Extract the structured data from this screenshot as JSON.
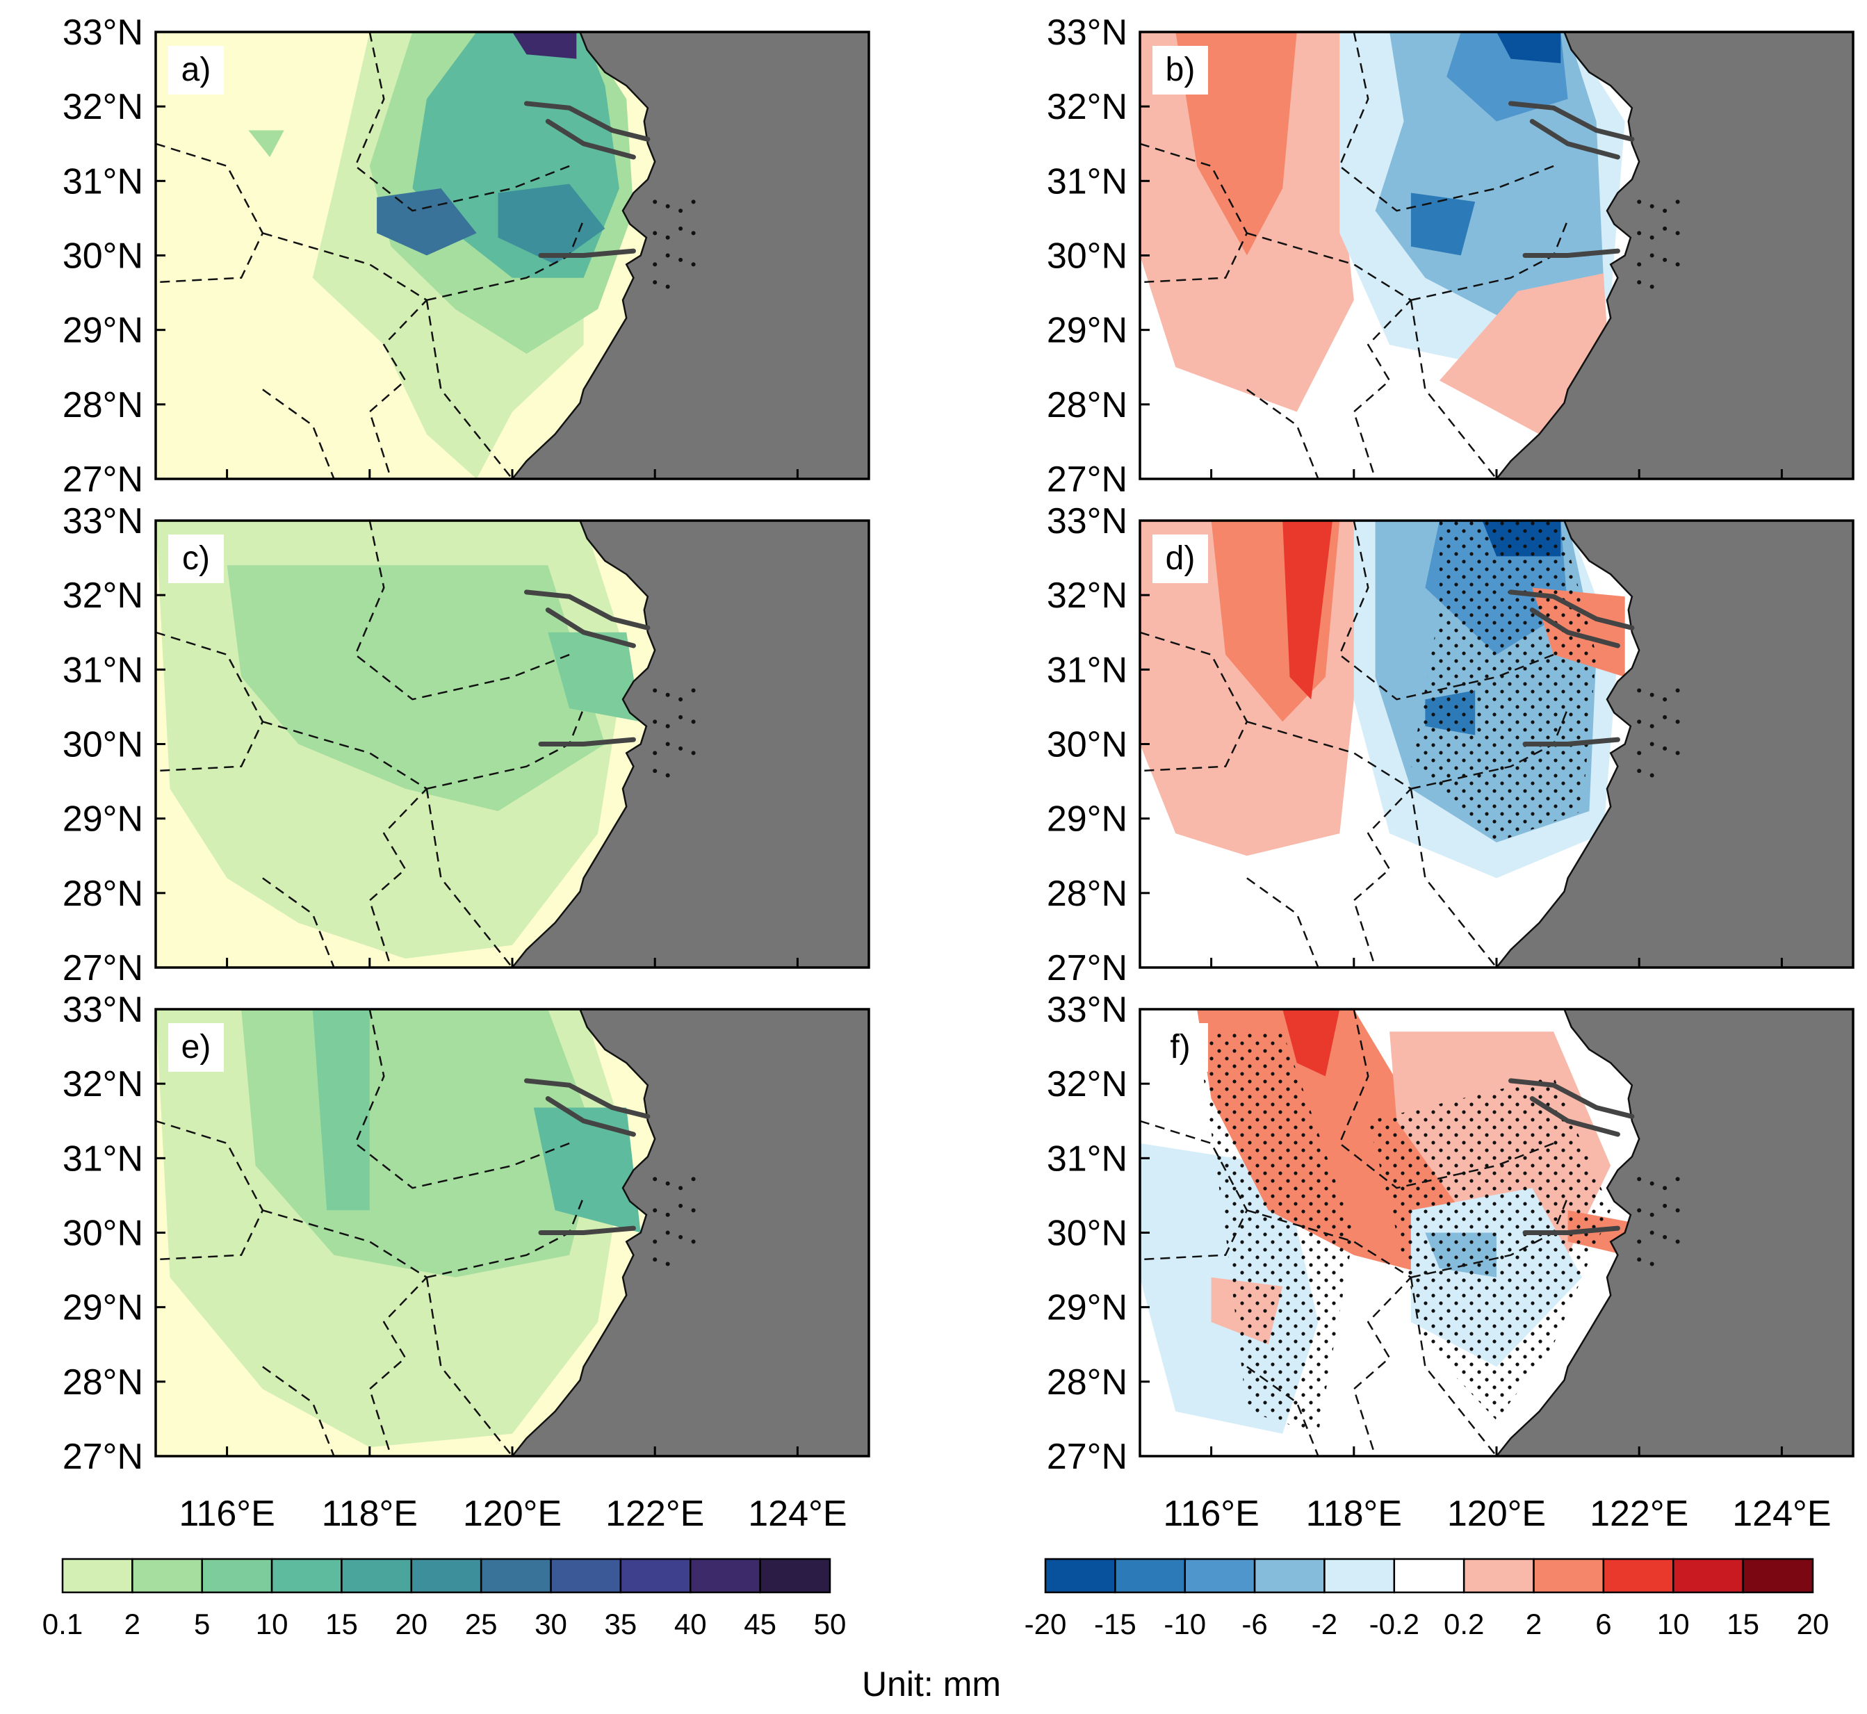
{
  "figure": {
    "unit_label": "Unit: mm",
    "background_color": "#ffffff",
    "ocean_color": "#757575"
  },
  "axes": {
    "lat_ticks": [
      "33°N",
      "32°N",
      "31°N",
      "30°N",
      "29°N",
      "28°N",
      "27°N"
    ],
    "lat_values": [
      33,
      32,
      31,
      30,
      29,
      28,
      27
    ],
    "lon_ticks": [
      "116°E",
      "118°E",
      "120°E",
      "122°E",
      "124°E"
    ],
    "lon_values": [
      116,
      118,
      120,
      122,
      124
    ],
    "lon_range": [
      115,
      125
    ],
    "lat_range": [
      27,
      33
    ]
  },
  "panels": [
    {
      "id": "a",
      "label": "a)",
      "scale": "precip",
      "stippled": false
    },
    {
      "id": "b",
      "label": "b)",
      "scale": "diff",
      "stippled": false
    },
    {
      "id": "c",
      "label": "c)",
      "scale": "precip",
      "stippled": false
    },
    {
      "id": "d",
      "label": "d)",
      "scale": "diff",
      "stippled": true
    },
    {
      "id": "e",
      "label": "e)",
      "scale": "precip",
      "stippled": false
    },
    {
      "id": "f",
      "label": "f)",
      "scale": "diff",
      "stippled": true
    }
  ],
  "colorbars": {
    "precip": {
      "labels": [
        "0.1",
        "2",
        "5",
        "10",
        "15",
        "20",
        "25",
        "30",
        "35",
        "40",
        "45",
        "50"
      ],
      "colors": [
        "#d3efb4",
        "#a6dea0",
        "#7dcc9c",
        "#5ebb9d",
        "#4aa69d",
        "#3d8f9b",
        "#3a7399",
        "#3b5897",
        "#3e3f8d",
        "#3c2a6a",
        "#2b1c46"
      ]
    },
    "diff": {
      "labels": [
        "-20",
        "-15",
        "-10",
        "-6",
        "-2",
        "-0.2",
        "0.2",
        "2",
        "6",
        "10",
        "15",
        "20"
      ],
      "colors": [
        "#08519c",
        "#2c7bb8",
        "#4f96cd",
        "#86bcdb",
        "#d4edf8",
        "#ffffff",
        "#f9b9aa",
        "#f6866a",
        "#e8392c",
        "#c91a22",
        "#7a0712"
      ]
    }
  }
}
